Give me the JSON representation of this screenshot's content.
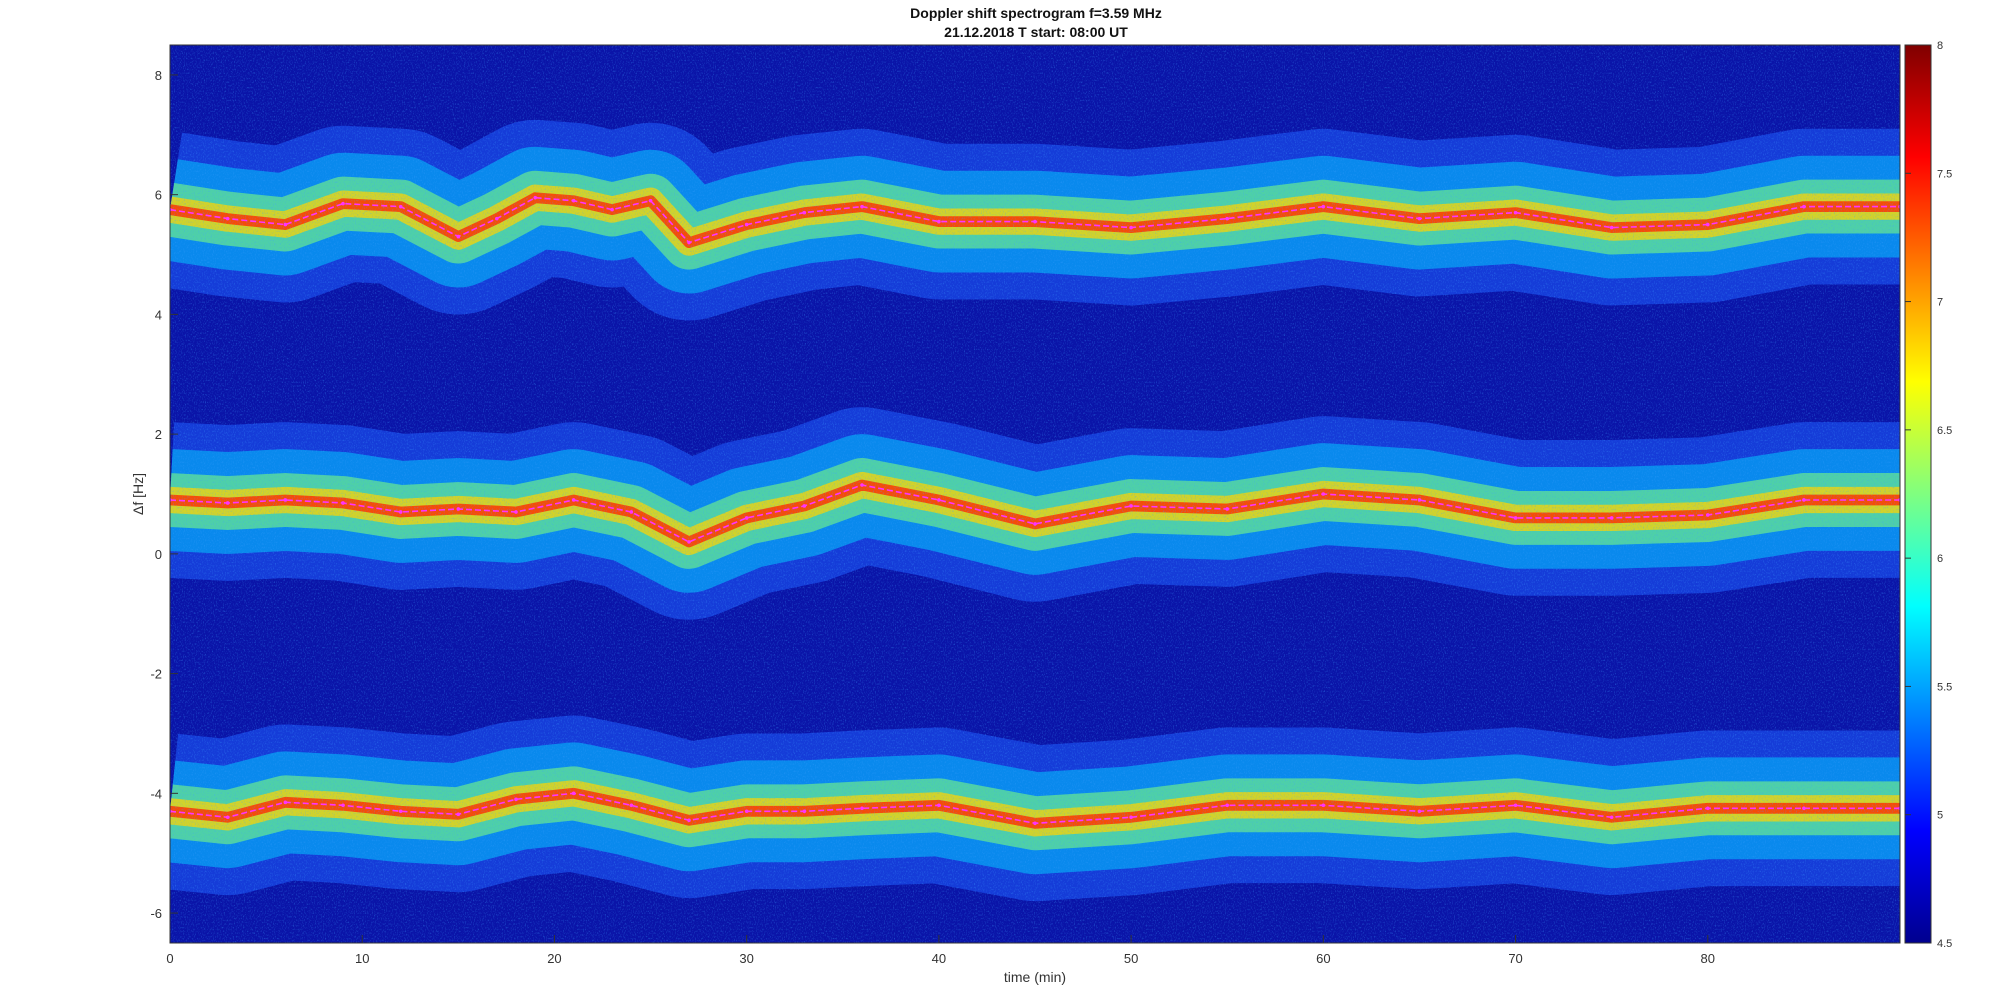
{
  "chart_data": {
    "type": "heatmap",
    "title": "Doppler shift spectrogram f=3.59 MHz",
    "subtitle": "21.12.2018   T start: 08:00 UT",
    "xlabel": "time (min)",
    "ylabel": "Δf [Hz]",
    "xlim": [
      0,
      90
    ],
    "ylim": [
      -6.5,
      8.5
    ],
    "xticks": [
      "0",
      "10",
      "20",
      "30",
      "40",
      "50",
      "60",
      "70",
      "80"
    ],
    "yticks": [
      "8",
      "6",
      "4",
      "2",
      "0",
      "-2",
      "-4",
      "-6"
    ],
    "colorbar": {
      "colormap": "jet",
      "range": [
        4.5,
        8
      ],
      "ticks": [
        "8",
        "7.5",
        "7",
        "6.5",
        "6",
        "5.5",
        "5",
        "4.5"
      ]
    },
    "grid": false,
    "traces": [
      {
        "color": "#ff33ff",
        "x": [
          0,
          3,
          6,
          9,
          12,
          15,
          17,
          19,
          21,
          23,
          25,
          27,
          30,
          33,
          36,
          40,
          45,
          50,
          55,
          60,
          65,
          70,
          75,
          80,
          85,
          90
        ],
        "y": [
          5.75,
          5.6,
          5.5,
          5.85,
          5.8,
          5.3,
          5.6,
          5.95,
          5.9,
          5.75,
          5.9,
          5.2,
          5.5,
          5.7,
          5.8,
          5.55,
          5.55,
          5.45,
          5.6,
          5.8,
          5.6,
          5.7,
          5.45,
          5.5,
          5.8,
          5.8
        ]
      },
      {
        "color": "#ff33ff",
        "x": [
          0,
          3,
          6,
          9,
          12,
          15,
          18,
          21,
          24,
          27,
          30,
          33,
          36,
          40,
          45,
          50,
          55,
          60,
          65,
          70,
          75,
          80,
          85,
          90
        ],
        "y": [
          0.9,
          0.85,
          0.9,
          0.85,
          0.7,
          0.75,
          0.7,
          0.9,
          0.7,
          0.2,
          0.6,
          0.8,
          1.15,
          0.9,
          0.5,
          0.8,
          0.75,
          1.0,
          0.9,
          0.6,
          0.6,
          0.65,
          0.9,
          0.9
        ]
      },
      {
        "color": "#ff33ff",
        "x": [
          0,
          3,
          6,
          9,
          12,
          15,
          18,
          21,
          24,
          27,
          30,
          33,
          36,
          40,
          45,
          50,
          55,
          60,
          65,
          70,
          75,
          80,
          85,
          90
        ],
        "y": [
          -4.3,
          -4.4,
          -4.15,
          -4.2,
          -4.3,
          -4.35,
          -4.1,
          -4.0,
          -4.2,
          -4.45,
          -4.3,
          -4.3,
          -4.25,
          -4.2,
          -4.5,
          -4.4,
          -4.2,
          -4.2,
          -4.3,
          -4.2,
          -4.4,
          -4.25,
          -4.25,
          -4.25
        ]
      }
    ]
  }
}
